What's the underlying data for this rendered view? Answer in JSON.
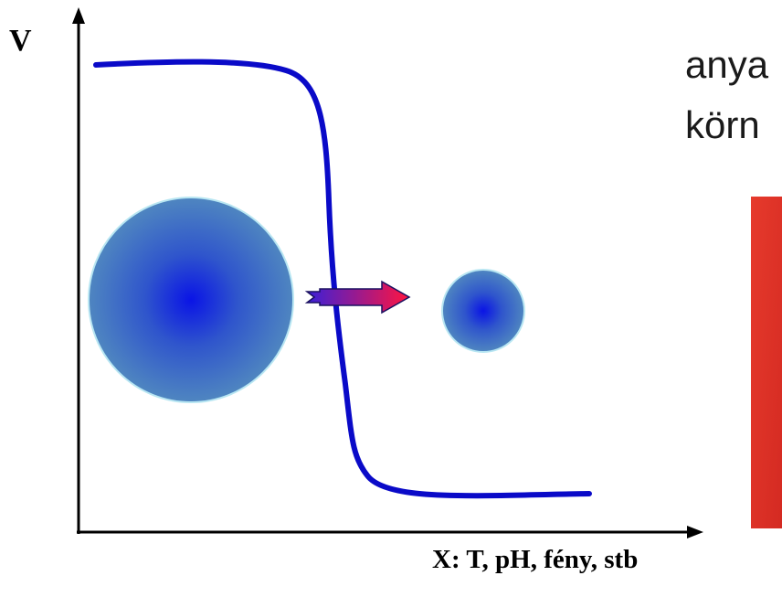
{
  "diagram": {
    "y_axis_label": "V",
    "x_axis_label": "X: T, pH, fény, stb",
    "side_text_line1": "anya",
    "side_text_line2": "körn",
    "colors": {
      "curve": "#0a0ac8",
      "axis": "#000000",
      "sphere_center": "#0a14e6",
      "sphere_edge": "#4f86c0",
      "sphere_outline": "#b8e6f2",
      "arrow_start": "#3a20d8",
      "arrow_end": "#ff1440",
      "red_panel": "#e03428"
    },
    "icons": {
      "large_sphere": "swollen-sphere",
      "small_sphere": "collapsed-sphere",
      "arrow": "right-arrow"
    }
  }
}
